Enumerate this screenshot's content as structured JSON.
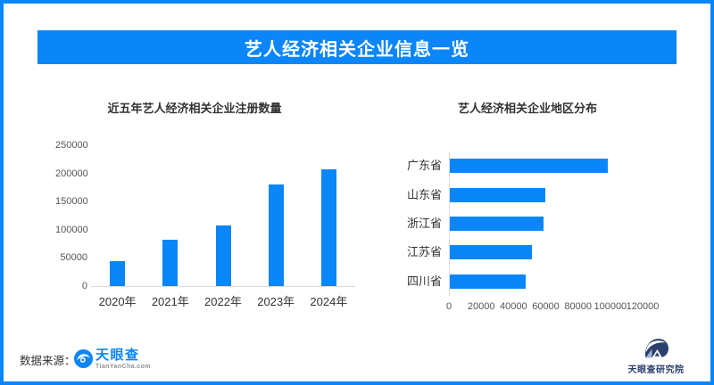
{
  "header": {
    "title": "艺人经济相关企业信息一览"
  },
  "colors": {
    "brand_blue": "#0b86f8",
    "navy": "#2b3f6d",
    "axis_line": "#dcdcdc",
    "text_dark": "#333333",
    "text_tick": "#555555"
  },
  "chart_data": [
    {
      "type": "bar",
      "title": "近五年艺人经济相关企业注册数量",
      "categories": [
        "2020年",
        "2021年",
        "2022年",
        "2023年",
        "2024年"
      ],
      "values": [
        45000,
        82000,
        107000,
        180000,
        208000
      ],
      "xlabel": "",
      "ylabel": "",
      "ylim": [
        0,
        250000
      ],
      "yticks": [
        0,
        50000,
        100000,
        150000,
        200000,
        250000
      ],
      "grid": false,
      "legend": false,
      "bar_color": "#0b86f8"
    },
    {
      "type": "bar-horizontal",
      "title": "艺人经济相关企业地区分布",
      "categories": [
        "广东省",
        "山东省",
        "浙江省",
        "江苏省",
        "四川省"
      ],
      "values": [
        98000,
        59000,
        58000,
        51000,
        47000
      ],
      "xlabel": "",
      "ylabel": "",
      "xlim": [
        0,
        120000
      ],
      "xticks": [
        0,
        20000,
        40000,
        60000,
        80000,
        100000,
        120000
      ],
      "grid": false,
      "legend": false,
      "bar_color": "#0b86f8"
    }
  ],
  "footer": {
    "source_label": "数据来源：",
    "tianyancha_logo": {
      "name": "天眼查",
      "subtext": "TianYanCha.com"
    },
    "research_logo": {
      "name": "天眼查研究院"
    }
  }
}
